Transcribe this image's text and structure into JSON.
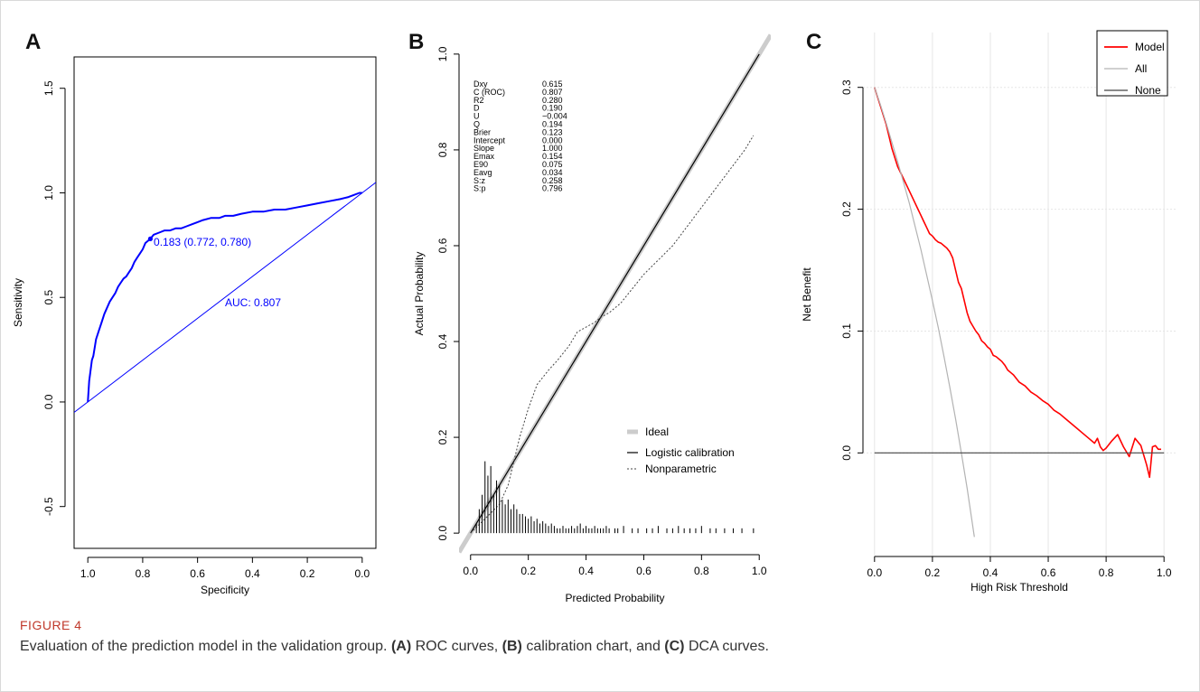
{
  "figure": {
    "label": "FIGURE 4",
    "caption_lead": "Evaluation of the prediction model in the validation group.",
    "caption_a_tag": "(A)",
    "caption_a_text": "ROC curves,",
    "caption_b_tag": "(B)",
    "caption_b_text": "calibration chart, and",
    "caption_c_tag": "(C)",
    "caption_c_text": "DCA curves."
  },
  "chart_data": [
    {
      "panel": "A",
      "type": "line",
      "xlabel": "Specificity",
      "ylabel": "Sensitivity",
      "xlim": [
        1.05,
        -0.05
      ],
      "ylim": [
        -0.7,
        1.65
      ],
      "x_ticks": [
        1.0,
        0.8,
        0.6,
        0.4,
        0.2,
        0.0
      ],
      "x_tick_labels": [
        "1.0",
        "0.8",
        "0.6",
        "0.4",
        "0.2",
        "0.0"
      ],
      "y_ticks": [
        -0.5,
        0.0,
        0.5,
        1.0,
        1.5
      ],
      "y_tick_labels": [
        "-0.5",
        "0.0",
        "0.5",
        "1.0",
        "1.5"
      ],
      "color": "#0000ff",
      "series": [
        {
          "specificity": [
            1.0,
            0.995,
            0.99,
            0.985,
            0.98,
            0.975,
            0.97,
            0.96,
            0.95,
            0.94,
            0.93,
            0.92,
            0.91,
            0.9,
            0.89,
            0.88,
            0.87,
            0.86,
            0.85,
            0.84,
            0.83,
            0.82,
            0.81,
            0.8,
            0.79,
            0.772,
            0.76,
            0.74,
            0.72,
            0.7,
            0.68,
            0.66,
            0.64,
            0.62,
            0.6,
            0.58,
            0.55,
            0.52,
            0.5,
            0.47,
            0.44,
            0.4,
            0.36,
            0.32,
            0.28,
            0.24,
            0.2,
            0.16,
            0.12,
            0.08,
            0.05,
            0.03,
            0.01,
            0.0
          ],
          "sensitivity": [
            0.0,
            0.1,
            0.15,
            0.2,
            0.22,
            0.26,
            0.3,
            0.34,
            0.38,
            0.42,
            0.45,
            0.48,
            0.5,
            0.52,
            0.55,
            0.57,
            0.59,
            0.6,
            0.62,
            0.64,
            0.67,
            0.69,
            0.71,
            0.73,
            0.76,
            0.78,
            0.8,
            0.81,
            0.82,
            0.82,
            0.83,
            0.83,
            0.84,
            0.85,
            0.86,
            0.87,
            0.88,
            0.88,
            0.89,
            0.89,
            0.9,
            0.91,
            0.91,
            0.92,
            0.92,
            0.93,
            0.94,
            0.95,
            0.96,
            0.97,
            0.98,
            0.99,
            1.0,
            1.0
          ]
        }
      ],
      "reference_line": [
        [
          1.05,
          -0.05
        ],
        [
          -0.05,
          1.05
        ]
      ],
      "cutoff_point": {
        "specificity": 0.772,
        "sensitivity": 0.78
      },
      "annotations": [
        {
          "text": "0.183 (0.772, 0.780)",
          "x": 0.76,
          "y": 0.765
        },
        {
          "text": "AUC: 0.807",
          "x": 0.5,
          "y": 0.475
        }
      ]
    },
    {
      "panel": "B",
      "type": "line",
      "xlabel": "Predicted Probability",
      "ylabel": "Actual Probability",
      "xlim": [
        -0.04,
        1.04
      ],
      "ylim": [
        -0.045,
        1.045
      ],
      "x_ticks": [
        0.0,
        0.2,
        0.4,
        0.6,
        0.8,
        1.0
      ],
      "x_tick_labels": [
        "0.0",
        "0.2",
        "0.4",
        "0.6",
        "0.8",
        "1.0"
      ],
      "y_ticks": [
        0.0,
        0.2,
        0.4,
        0.6,
        0.8,
        1.0
      ],
      "y_tick_labels": [
        "0.0",
        "0.2",
        "0.4",
        "0.6",
        "0.8",
        "1.0"
      ],
      "series": [
        {
          "name": "Ideal",
          "x": [
            -0.04,
            1.04
          ],
          "y": [
            -0.04,
            1.04
          ],
          "color": "#cccccc",
          "width": 5
        },
        {
          "name": "Logistic calibration",
          "x": [
            0.0,
            1.0
          ],
          "y": [
            0.0,
            1.0
          ],
          "color": "#000000",
          "width": 1.2
        },
        {
          "name": "Nonparametric",
          "x": [
            0.0,
            0.05,
            0.1,
            0.13,
            0.15,
            0.17,
            0.2,
            0.23,
            0.27,
            0.3,
            0.34,
            0.37,
            0.4,
            0.43,
            0.45,
            0.48,
            0.52,
            0.56,
            0.6,
            0.65,
            0.7,
            0.75,
            0.8,
            0.85,
            0.9,
            0.95,
            0.98
          ],
          "y": [
            0.0,
            0.03,
            0.06,
            0.1,
            0.15,
            0.2,
            0.26,
            0.31,
            0.34,
            0.36,
            0.39,
            0.42,
            0.43,
            0.44,
            0.45,
            0.46,
            0.48,
            0.51,
            0.54,
            0.57,
            0.6,
            0.64,
            0.68,
            0.72,
            0.76,
            0.8,
            0.83
          ],
          "color": "#444444",
          "dash": "2,2"
        }
      ],
      "spike_histogram": {
        "x": [
          0.02,
          0.03,
          0.04,
          0.05,
          0.06,
          0.07,
          0.08,
          0.09,
          0.1,
          0.11,
          0.12,
          0.13,
          0.14,
          0.15,
          0.16,
          0.17,
          0.18,
          0.19,
          0.2,
          0.21,
          0.22,
          0.23,
          0.24,
          0.25,
          0.26,
          0.27,
          0.28,
          0.29,
          0.3,
          0.31,
          0.32,
          0.33,
          0.34,
          0.35,
          0.36,
          0.37,
          0.38,
          0.39,
          0.4,
          0.41,
          0.42,
          0.43,
          0.44,
          0.45,
          0.46,
          0.47,
          0.48,
          0.5,
          0.51,
          0.53,
          0.56,
          0.58,
          0.61,
          0.63,
          0.65,
          0.68,
          0.7,
          0.72,
          0.74,
          0.76,
          0.78,
          0.8,
          0.83,
          0.85,
          0.88,
          0.91,
          0.94,
          0.98
        ],
        "height": [
          0.02,
          0.05,
          0.08,
          0.15,
          0.12,
          0.14,
          0.08,
          0.11,
          0.1,
          0.07,
          0.06,
          0.07,
          0.05,
          0.06,
          0.05,
          0.04,
          0.04,
          0.035,
          0.03,
          0.035,
          0.025,
          0.03,
          0.02,
          0.025,
          0.02,
          0.015,
          0.02,
          0.015,
          0.01,
          0.01,
          0.015,
          0.01,
          0.01,
          0.015,
          0.01,
          0.015,
          0.02,
          0.01,
          0.015,
          0.01,
          0.01,
          0.015,
          0.01,
          0.01,
          0.01,
          0.015,
          0.01,
          0.01,
          0.01,
          0.015,
          0.01,
          0.01,
          0.01,
          0.01,
          0.015,
          0.01,
          0.01,
          0.015,
          0.01,
          0.01,
          0.01,
          0.015,
          0.01,
          0.01,
          0.01,
          0.01,
          0.01,
          0.01
        ]
      },
      "stats": [
        {
          "label": "Dxy",
          "value": "0.615"
        },
        {
          "label": "C (ROC)",
          "value": "0.807"
        },
        {
          "label": "R2",
          "value": "0.280"
        },
        {
          "label": "D",
          "value": "0.190"
        },
        {
          "label": "U",
          "value": "−0.004"
        },
        {
          "label": "Q",
          "value": "0.194"
        },
        {
          "label": "Brier",
          "value": "0.123"
        },
        {
          "label": "Intercept",
          "value": "0.000"
        },
        {
          "label": "Slope",
          "value": "1.000"
        },
        {
          "label": "Emax",
          "value": "0.154"
        },
        {
          "label": "E90",
          "value": "0.075"
        },
        {
          "label": "Eavg",
          "value": "0.034"
        },
        {
          "label": "S:z",
          "value": "0.258"
        },
        {
          "label": "S:p",
          "value": "0.796"
        }
      ],
      "legend_position": "bottom-right"
    },
    {
      "panel": "C",
      "type": "line",
      "xlabel": "High Risk Threshold",
      "ylabel": "Net Benefit",
      "xlim": [
        -0.04,
        1.04
      ],
      "ylim": [
        -0.085,
        0.345
      ],
      "x_ticks": [
        0.0,
        0.2,
        0.4,
        0.6,
        0.8,
        1.0
      ],
      "x_tick_labels": [
        "0.0",
        "0.2",
        "0.4",
        "0.6",
        "0.8",
        "1.0"
      ],
      "y_ticks": [
        0.0,
        0.1,
        0.2,
        0.3
      ],
      "y_tick_labels": [
        "0.0",
        "0.1",
        "0.2",
        "0.3"
      ],
      "grid": true,
      "series": [
        {
          "name": "Model",
          "color": "#ff0000",
          "x": [
            0.0,
            0.02,
            0.04,
            0.06,
            0.08,
            0.1,
            0.12,
            0.14,
            0.15,
            0.16,
            0.17,
            0.18,
            0.19,
            0.2,
            0.21,
            0.22,
            0.23,
            0.24,
            0.25,
            0.26,
            0.27,
            0.28,
            0.29,
            0.3,
            0.31,
            0.32,
            0.33,
            0.34,
            0.35,
            0.36,
            0.37,
            0.38,
            0.39,
            0.4,
            0.41,
            0.42,
            0.43,
            0.44,
            0.45,
            0.46,
            0.47,
            0.48,
            0.5,
            0.52,
            0.54,
            0.56,
            0.58,
            0.6,
            0.62,
            0.64,
            0.66,
            0.68,
            0.7,
            0.72,
            0.74,
            0.76,
            0.77,
            0.78,
            0.79,
            0.8,
            0.82,
            0.84,
            0.86,
            0.88,
            0.9,
            0.92,
            0.94,
            0.95,
            0.96,
            0.97,
            0.98,
            0.99
          ],
          "y": [
            0.3,
            0.285,
            0.27,
            0.25,
            0.235,
            0.225,
            0.215,
            0.205,
            0.2,
            0.195,
            0.19,
            0.185,
            0.18,
            0.178,
            0.175,
            0.173,
            0.172,
            0.17,
            0.168,
            0.165,
            0.16,
            0.15,
            0.14,
            0.135,
            0.125,
            0.115,
            0.108,
            0.104,
            0.1,
            0.097,
            0.092,
            0.09,
            0.087,
            0.085,
            0.08,
            0.079,
            0.077,
            0.075,
            0.072,
            0.068,
            0.066,
            0.064,
            0.058,
            0.055,
            0.05,
            0.047,
            0.043,
            0.04,
            0.035,
            0.032,
            0.028,
            0.024,
            0.02,
            0.016,
            0.012,
            0.008,
            0.012,
            0.005,
            0.002,
            0.004,
            0.01,
            0.015,
            0.005,
            -0.003,
            0.012,
            0.006,
            -0.01,
            -0.02,
            0.005,
            0.006,
            0.003,
            0.003
          ]
        },
        {
          "name": "All",
          "color": "#b3b3b3",
          "x": [
            0.0,
            0.02,
            0.04,
            0.06,
            0.08,
            0.1,
            0.12,
            0.14,
            0.16,
            0.18,
            0.2,
            0.22,
            0.24,
            0.26,
            0.28,
            0.3,
            0.32,
            0.34,
            0.345
          ],
          "y": [
            0.3,
            0.286,
            0.271,
            0.255,
            0.239,
            0.222,
            0.205,
            0.186,
            0.167,
            0.146,
            0.125,
            0.103,
            0.079,
            0.054,
            0.028,
            0.0,
            -0.029,
            -0.061,
            -0.069
          ]
        },
        {
          "name": "None",
          "color": "#444444",
          "x": [
            0.0,
            1.0
          ],
          "y": [
            0.0,
            0.0
          ]
        }
      ],
      "legend_position": "top-right"
    }
  ]
}
